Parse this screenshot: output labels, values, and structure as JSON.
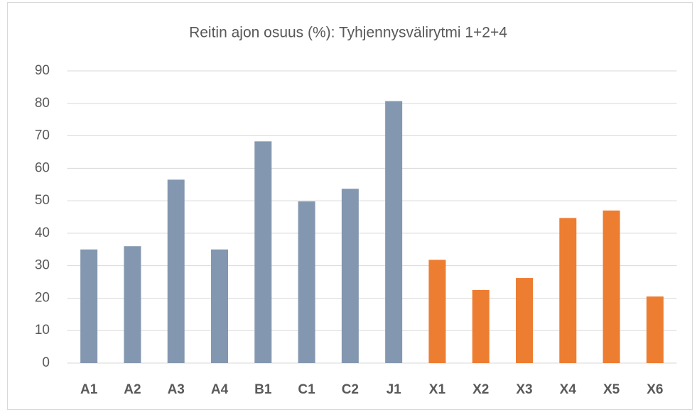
{
  "chart_data": {
    "type": "bar",
    "title": "Reitin ajon osuus (%): Tyhjennysvälirytmi 1+2+4",
    "categories": [
      "A1",
      "A2",
      "A3",
      "A4",
      "B1",
      "C1",
      "C2",
      "J1",
      "X1",
      "X2",
      "X3",
      "X4",
      "X5",
      "X6"
    ],
    "values": [
      35,
      36,
      56.5,
      35,
      68.3,
      49.8,
      53.7,
      80.7,
      31.8,
      22.5,
      26.2,
      44.7,
      47,
      20.5
    ],
    "colors": [
      "#8497b0",
      "#8497b0",
      "#8497b0",
      "#8497b0",
      "#8497b0",
      "#8497b0",
      "#8497b0",
      "#8497b0",
      "#ed7d31",
      "#ed7d31",
      "#ed7d31",
      "#ed7d31",
      "#ed7d31",
      "#ed7d31"
    ],
    "ylim": [
      0,
      90
    ],
    "yticks": [
      0,
      10,
      20,
      30,
      40,
      50,
      60,
      70,
      80,
      90
    ],
    "grid": true
  }
}
